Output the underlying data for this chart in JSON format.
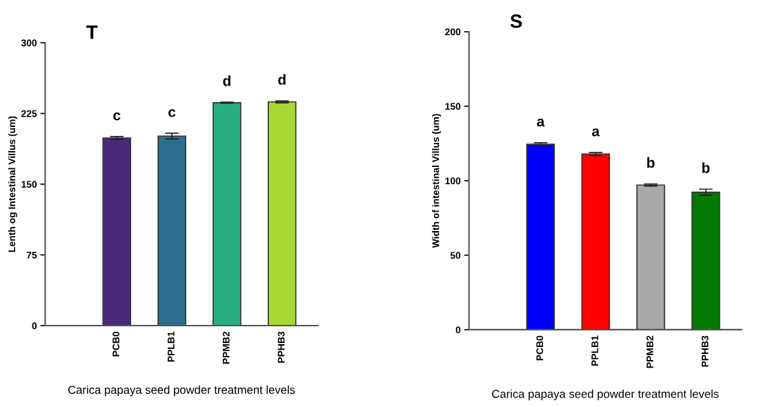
{
  "chart_data": [
    {
      "type": "bar",
      "title": "T",
      "xlabel": "Carica papaya seed powder treatment levels",
      "ylabel": "Lenth og Intestinal Villus (um)",
      "categories": [
        "PCB0",
        "PPLB1",
        "PPMB2",
        "PPHB3"
      ],
      "values": [
        199,
        201,
        236.4,
        237.2
      ],
      "errors": [
        1.5,
        3,
        0.5,
        1
      ],
      "colors": [
        "#472a7a",
        "#2c6e8e",
        "#29af7f",
        "#a6d934"
      ],
      "ylim": [
        0,
        300
      ],
      "yticks": [
        0,
        75,
        150,
        225,
        300
      ],
      "annotations": [
        "c",
        "c",
        "d",
        "d"
      ]
    },
    {
      "type": "bar",
      "title": "S",
      "xlabel": "Carica papaya seed powder treatment levels",
      "ylabel": "Width of intestinal Villus (um)",
      "categories": [
        "PCB0",
        "PPLB1",
        "PPMB2",
        "PPHB3"
      ],
      "values": [
        124.5,
        117.9,
        97.1,
        92.3
      ],
      "errors": [
        1,
        1,
        0.7,
        2
      ],
      "colors": [
        "#0000ff",
        "#ff0000",
        "#a9a9a9",
        "#037a03"
      ],
      "ylim": [
        0,
        200
      ],
      "yticks": [
        0,
        50,
        100,
        150,
        200
      ],
      "annotations": [
        "a",
        "a",
        "b",
        "b"
      ]
    }
  ]
}
